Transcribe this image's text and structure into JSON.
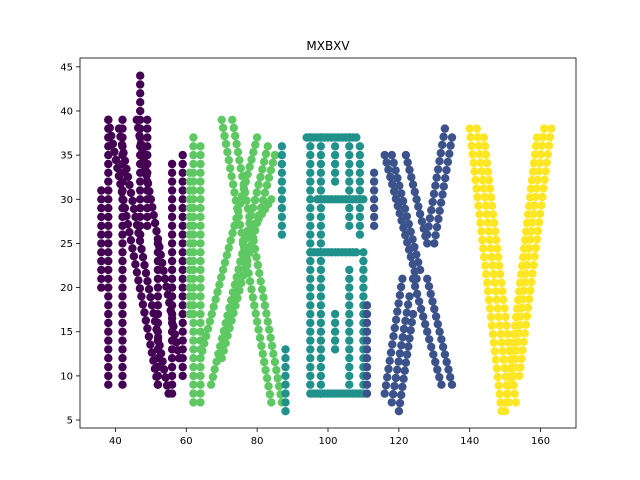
{
  "chart_data": {
    "type": "scatter",
    "title": "MXBXV",
    "xlabel": "",
    "ylabel": "",
    "xlim": [
      30,
      170
    ],
    "ylim": [
      4.1,
      46
    ],
    "xticks": [
      40,
      60,
      80,
      100,
      120,
      140,
      160
    ],
    "yticks": [
      5,
      10,
      15,
      20,
      25,
      30,
      35,
      40,
      45
    ],
    "grid": false,
    "legend": "none",
    "series": [
      {
        "color": "#440154",
        "strokes": [
          {
            "from": [
              38,
              9
            ],
            "to": [
              38,
              39
            ]
          },
          {
            "from": [
              42,
              9
            ],
            "to": [
              42,
              39
            ]
          },
          {
            "from": [
              36,
              20
            ],
            "to": [
              36,
              31
            ]
          },
          {
            "from": [
              38,
              39
            ],
            "to": [
              52,
              9
            ]
          },
          {
            "from": [
              41,
              38
            ],
            "to": [
              55,
              8
            ]
          },
          {
            "from": [
              46,
              39
            ],
            "to": [
              58,
              12
            ]
          },
          {
            "from": [
              52,
              9
            ],
            "to": [
              52,
              25
            ]
          },
          {
            "from": [
              56,
              8
            ],
            "to": [
              56,
              34
            ]
          },
          {
            "from": [
              59,
              10
            ],
            "to": [
              59,
              35
            ]
          },
          {
            "from": [
              47,
              26
            ],
            "to": [
              47,
              44
            ]
          },
          {
            "from": [
              49,
              27
            ],
            "to": [
              49,
              39
            ]
          }
        ]
      },
      {
        "color": "#5ec962",
        "strokes": [
          {
            "from": [
              62,
              7
            ],
            "to": [
              62,
              37
            ]
          },
          {
            "from": [
              64,
              7
            ],
            "to": [
              64,
              36
            ]
          },
          {
            "from": [
              61,
              17
            ],
            "to": [
              61,
              33
            ]
          },
          {
            "from": [
              70,
              39
            ],
            "to": [
              84,
              7
            ]
          },
          {
            "from": [
              73,
              39
            ],
            "to": [
              87,
              7
            ]
          },
          {
            "from": [
              67,
              9
            ],
            "to": [
              83,
              36
            ]
          },
          {
            "from": [
              64,
              12
            ],
            "to": [
              80,
              37
            ]
          },
          {
            "from": [
              70,
              12
            ],
            "to": [
              85,
              35
            ]
          },
          {
            "from": [
              76,
              25
            ],
            "to": [
              84,
              30
            ]
          }
        ]
      },
      {
        "color": "#21918c",
        "strokes": [
          {
            "from": [
              88,
              6
            ],
            "to": [
              88,
              13
            ]
          },
          {
            "from": [
              87,
              26
            ],
            "to": [
              87,
              36
            ]
          },
          {
            "from": [
              95,
              8
            ],
            "to": [
              95,
              37
            ]
          },
          {
            "from": [
              98,
              8
            ],
            "to": [
              98,
              37
            ]
          },
          {
            "from": [
              94,
              37
            ],
            "to": [
              108,
              37
            ]
          },
          {
            "from": [
              96,
              8
            ],
            "to": [
              110,
              8
            ]
          },
          {
            "from": [
              95,
              24
            ],
            "to": [
              108,
              24
            ]
          },
          {
            "from": [
              97,
              30
            ],
            "to": [
              110,
              30
            ]
          },
          {
            "from": [
              106,
              27
            ],
            "to": [
              106,
              37
            ]
          },
          {
            "from": [
              109,
              26
            ],
            "to": [
              109,
              36
            ]
          },
          {
            "from": [
              106,
              9
            ],
            "to": [
              106,
              22
            ]
          },
          {
            "from": [
              110,
              9
            ],
            "to": [
              110,
              24
            ]
          },
          {
            "from": [
              102,
              13
            ],
            "to": [
              102,
              17
            ]
          },
          {
            "from": [
              102,
              32
            ],
            "to": [
              102,
              36
            ]
          }
        ]
      },
      {
        "color": "#3b528b",
        "strokes": [
          {
            "from": [
              111,
              8
            ],
            "to": [
              111,
              18
            ]
          },
          {
            "from": [
              113,
              27
            ],
            "to": [
              113,
              33
            ]
          },
          {
            "from": [
              116,
              35
            ],
            "to": [
              125,
              21
            ]
          },
          {
            "from": [
              118,
              35
            ],
            "to": [
              126,
              22
            ]
          },
          {
            "from": [
              122,
              35
            ],
            "to": [
              128,
              25
            ]
          },
          {
            "from": [
              116,
              8
            ],
            "to": [
              121,
              21
            ]
          },
          {
            "from": [
              118,
              7
            ],
            "to": [
              123,
              19
            ]
          },
          {
            "from": [
              120,
              6
            ],
            "to": [
              124,
              17
            ]
          },
          {
            "from": [
              124,
              21
            ],
            "to": [
              132,
              9
            ]
          },
          {
            "from": [
              128,
              21
            ],
            "to": [
              135,
              9
            ]
          },
          {
            "from": [
              130,
              25
            ],
            "to": [
              135,
              37
            ]
          },
          {
            "from": [
              128,
              26
            ],
            "to": [
              133,
              38
            ]
          }
        ]
      },
      {
        "color": "#fde725",
        "strokes": [
          {
            "from": [
              140,
              38
            ],
            "to": [
              149,
              6
            ]
          },
          {
            "from": [
              142,
              38
            ],
            "to": [
              151,
              7
            ]
          },
          {
            "from": [
              144,
              37
            ],
            "to": [
              153,
              7
            ]
          },
          {
            "from": [
              152,
              9
            ],
            "to": [
              161,
              38
            ]
          },
          {
            "from": [
              154,
              10
            ],
            "to": [
              163,
              38
            ]
          },
          {
            "from": [
              150,
              6
            ],
            "to": [
              159,
              37
            ]
          }
        ]
      }
    ]
  }
}
